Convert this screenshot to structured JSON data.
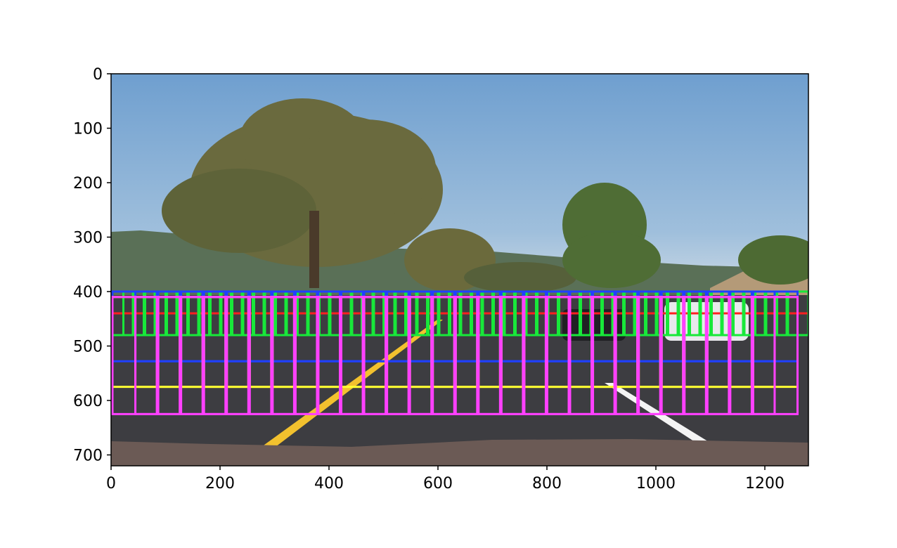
{
  "chart_data": {
    "type": "image",
    "title": "",
    "xlabel": "",
    "ylabel": "",
    "xlim": [
      0,
      1280
    ],
    "ylim": [
      720,
      0
    ],
    "x_ticks": [
      0,
      200,
      400,
      600,
      800,
      1000,
      1200
    ],
    "y_ticks": [
      0,
      100,
      200,
      300,
      400,
      500,
      600,
      700
    ],
    "image_description": "dashcam road photo",
    "colors": {
      "sky": "#7eaad4",
      "sky_horizon": "#b7cde0",
      "hills": "#4f6a4a",
      "road": "#3c3c40",
      "hood": "#6b5a55",
      "lane_yellow": "#f2c12e",
      "lane_white": "#f4f4f4"
    },
    "window_layers": [
      {
        "color": "#ff2020",
        "y0": 400,
        "y1": 440,
        "x_start": 0,
        "x_end": 1280,
        "step": 20
      },
      {
        "color": "#18e83a",
        "y0": 400,
        "y1": 480,
        "x_start": 0,
        "x_end": 1280,
        "step": 20
      },
      {
        "color": "#2040ff",
        "y0": 400,
        "y1": 528,
        "x_start": 0,
        "x_end": 1280,
        "step": 42
      },
      {
        "color": "#ffff33",
        "y0": 410,
        "y1": 575,
        "x_start": 0,
        "x_end": 1270,
        "step": 42
      },
      {
        "color": "#ff40ff",
        "y0": 410,
        "y1": 625,
        "x_start": 0,
        "x_end": 1270,
        "step": 42
      }
    ]
  }
}
